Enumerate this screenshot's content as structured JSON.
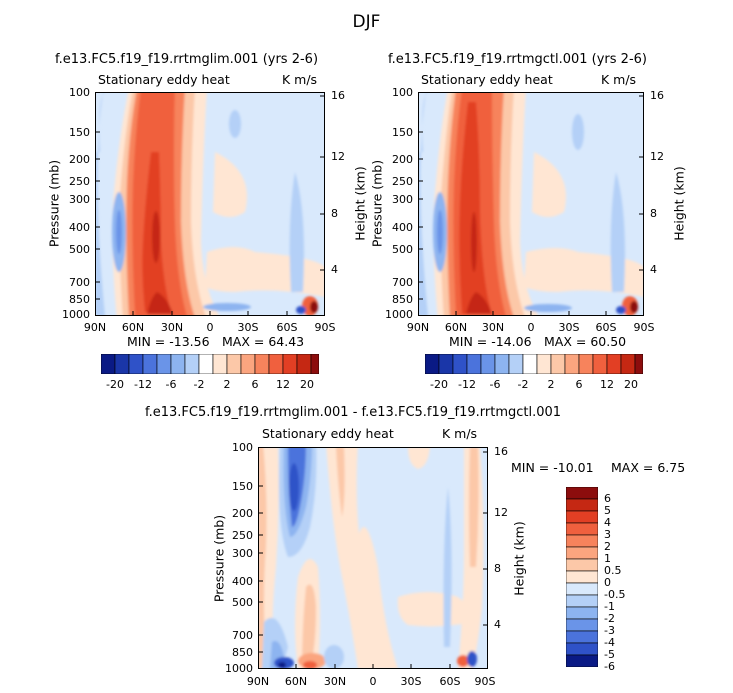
{
  "page": {
    "title": "DJF"
  },
  "chart_data": [
    {
      "type": "heatmap",
      "title": "f.e13.FC5.f19_f19.rrtmglim.001 (yrs 2-6)",
      "subtitle_left": "Stationary eddy heat",
      "subtitle_right": "K m/s",
      "xlabel": "",
      "ylabel": "Pressure (mb)",
      "ylabel_right": "Height (km)",
      "x_ticks": [
        "90N",
        "60N",
        "30N",
        "0",
        "30S",
        "60S",
        "90S"
      ],
      "y_ticks": [
        "100",
        "150",
        "200",
        "250",
        "300",
        "400",
        "500",
        "700",
        "850",
        "1000"
      ],
      "y_right_ticks": [
        "16",
        "12",
        "8",
        "4"
      ],
      "xlim": [
        90,
        -90
      ],
      "ylim": [
        1000,
        100
      ],
      "min_label": "MIN = -13.56",
      "max_label": "MAX = 64.43",
      "colorbar_labels": [
        "-20",
        "-12",
        "-6",
        "-2",
        "2",
        "6",
        "12",
        "20"
      ]
    },
    {
      "type": "heatmap",
      "title": "f.e13.FC5.f19_f19.rrtmgctl.001 (yrs 2-6)",
      "subtitle_left": "Stationary eddy heat",
      "subtitle_right": "K m/s",
      "xlabel": "",
      "ylabel": "Pressure (mb)",
      "ylabel_right": "Height (km)",
      "x_ticks": [
        "90N",
        "60N",
        "30N",
        "0",
        "30S",
        "60S",
        "90S"
      ],
      "y_ticks": [
        "100",
        "150",
        "200",
        "250",
        "300",
        "400",
        "500",
        "700",
        "850",
        "1000"
      ],
      "y_right_ticks": [
        "16",
        "12",
        "8",
        "4"
      ],
      "xlim": [
        90,
        -90
      ],
      "ylim": [
        1000,
        100
      ],
      "min_label": "MIN = -14.06",
      "max_label": "MAX = 60.50",
      "colorbar_labels": [
        "-20",
        "-12",
        "-6",
        "-2",
        "2",
        "6",
        "12",
        "20"
      ]
    },
    {
      "type": "heatmap",
      "title": "f.e13.FC5.f19_f19.rrtmglim.001 - f.e13.FC5.f19_f19.rrtmgctl.001",
      "subtitle_left": "Stationary eddy heat",
      "subtitle_right": "K m/s",
      "xlabel": "",
      "ylabel": "Pressure (mb)",
      "ylabel_right": "Height (km)",
      "x_ticks": [
        "90N",
        "60N",
        "30N",
        "0",
        "30S",
        "60S",
        "90S"
      ],
      "y_ticks": [
        "100",
        "150",
        "200",
        "250",
        "300",
        "400",
        "500",
        "700",
        "850",
        "1000"
      ],
      "y_right_ticks": [
        "16",
        "12",
        "8",
        "4"
      ],
      "xlim": [
        90,
        -90
      ],
      "ylim": [
        1000,
        100
      ],
      "min_label": "MIN = -10.01",
      "max_label": "MAX = 6.75",
      "colorbar_labels": [
        "6",
        "5",
        "4",
        "3",
        "2",
        "1",
        "0.5",
        "0",
        "-0.5",
        "-1",
        "-2",
        "-3",
        "-4",
        "-5",
        "-6"
      ]
    }
  ],
  "colors": {
    "warm_palette": [
      "#ffe6d3",
      "#fcc8a8",
      "#fba57f",
      "#f7835c",
      "#f0603e",
      "#e23f24",
      "#c52813",
      "#8c0d0d"
    ],
    "cool_palette": [
      "#d9e9fc",
      "#b4d0f7",
      "#8db4f0",
      "#6a94e8",
      "#4b73dc",
      "#2f52c8",
      "#1a36a8",
      "#0a1a85"
    ],
    "background_field": "#d9e9fc"
  }
}
